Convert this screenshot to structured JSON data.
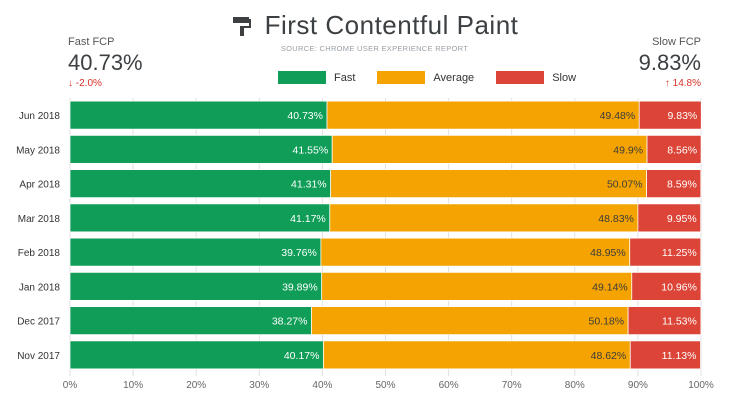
{
  "header": {
    "title": "First Contentful Paint",
    "subtitle": "SOURCE: CHROME USER EXPERIENCE REPORT",
    "left_kpi": {
      "label": "Fast FCP",
      "value": "40.73%",
      "change": "↓ -2.0%"
    },
    "right_kpi": {
      "label": "Slow FCP",
      "value": "9.83%",
      "change": "↑ 14.8%"
    }
  },
  "legend": [
    "Fast",
    "Average",
    "Slow"
  ],
  "colors": {
    "fast": "#0f9d58",
    "average": "#f4a300",
    "slow": "#db4437",
    "grid": "#e0e0e0",
    "axis": "#666666"
  },
  "icons": {
    "logo": "paint-roller-icon"
  },
  "chart_data": {
    "type": "bar",
    "orientation": "horizontal",
    "stacked": true,
    "categories": [
      "Jun 2018",
      "May 2018",
      "Apr 2018",
      "Mar 2018",
      "Feb 2018",
      "Jan 2018",
      "Dec 2017",
      "Nov 2017"
    ],
    "series": [
      {
        "name": "Fast",
        "values": [
          40.73,
          41.55,
          41.31,
          41.17,
          39.76,
          39.89,
          38.27,
          40.17
        ],
        "labels": [
          "40.73%",
          "41.55%",
          "41.31%",
          "41.17%",
          "39.76%",
          "39.89%",
          "38.27%",
          "40.17%"
        ]
      },
      {
        "name": "Average",
        "values": [
          49.48,
          49.9,
          50.07,
          48.83,
          48.95,
          49.14,
          50.18,
          48.62
        ],
        "labels": [
          "49.48%",
          "49.9%",
          "50.07%",
          "48.83%",
          "48.95%",
          "49.14%",
          "50.18%",
          "48.62%"
        ]
      },
      {
        "name": "Slow",
        "values": [
          9.83,
          8.56,
          8.59,
          9.95,
          11.25,
          10.96,
          11.53,
          11.13
        ],
        "labels": [
          "9.83%",
          "8.56%",
          "8.59%",
          "9.95%",
          "11.25%",
          "10.96%",
          "11.53%",
          "11.13%"
        ]
      }
    ],
    "xlim": [
      0,
      100
    ],
    "x_ticks": [
      "0%",
      "10%",
      "20%",
      "30%",
      "40%",
      "50%",
      "60%",
      "70%",
      "80%",
      "90%",
      "100%"
    ],
    "grid": true,
    "legend_position": "top-center"
  }
}
